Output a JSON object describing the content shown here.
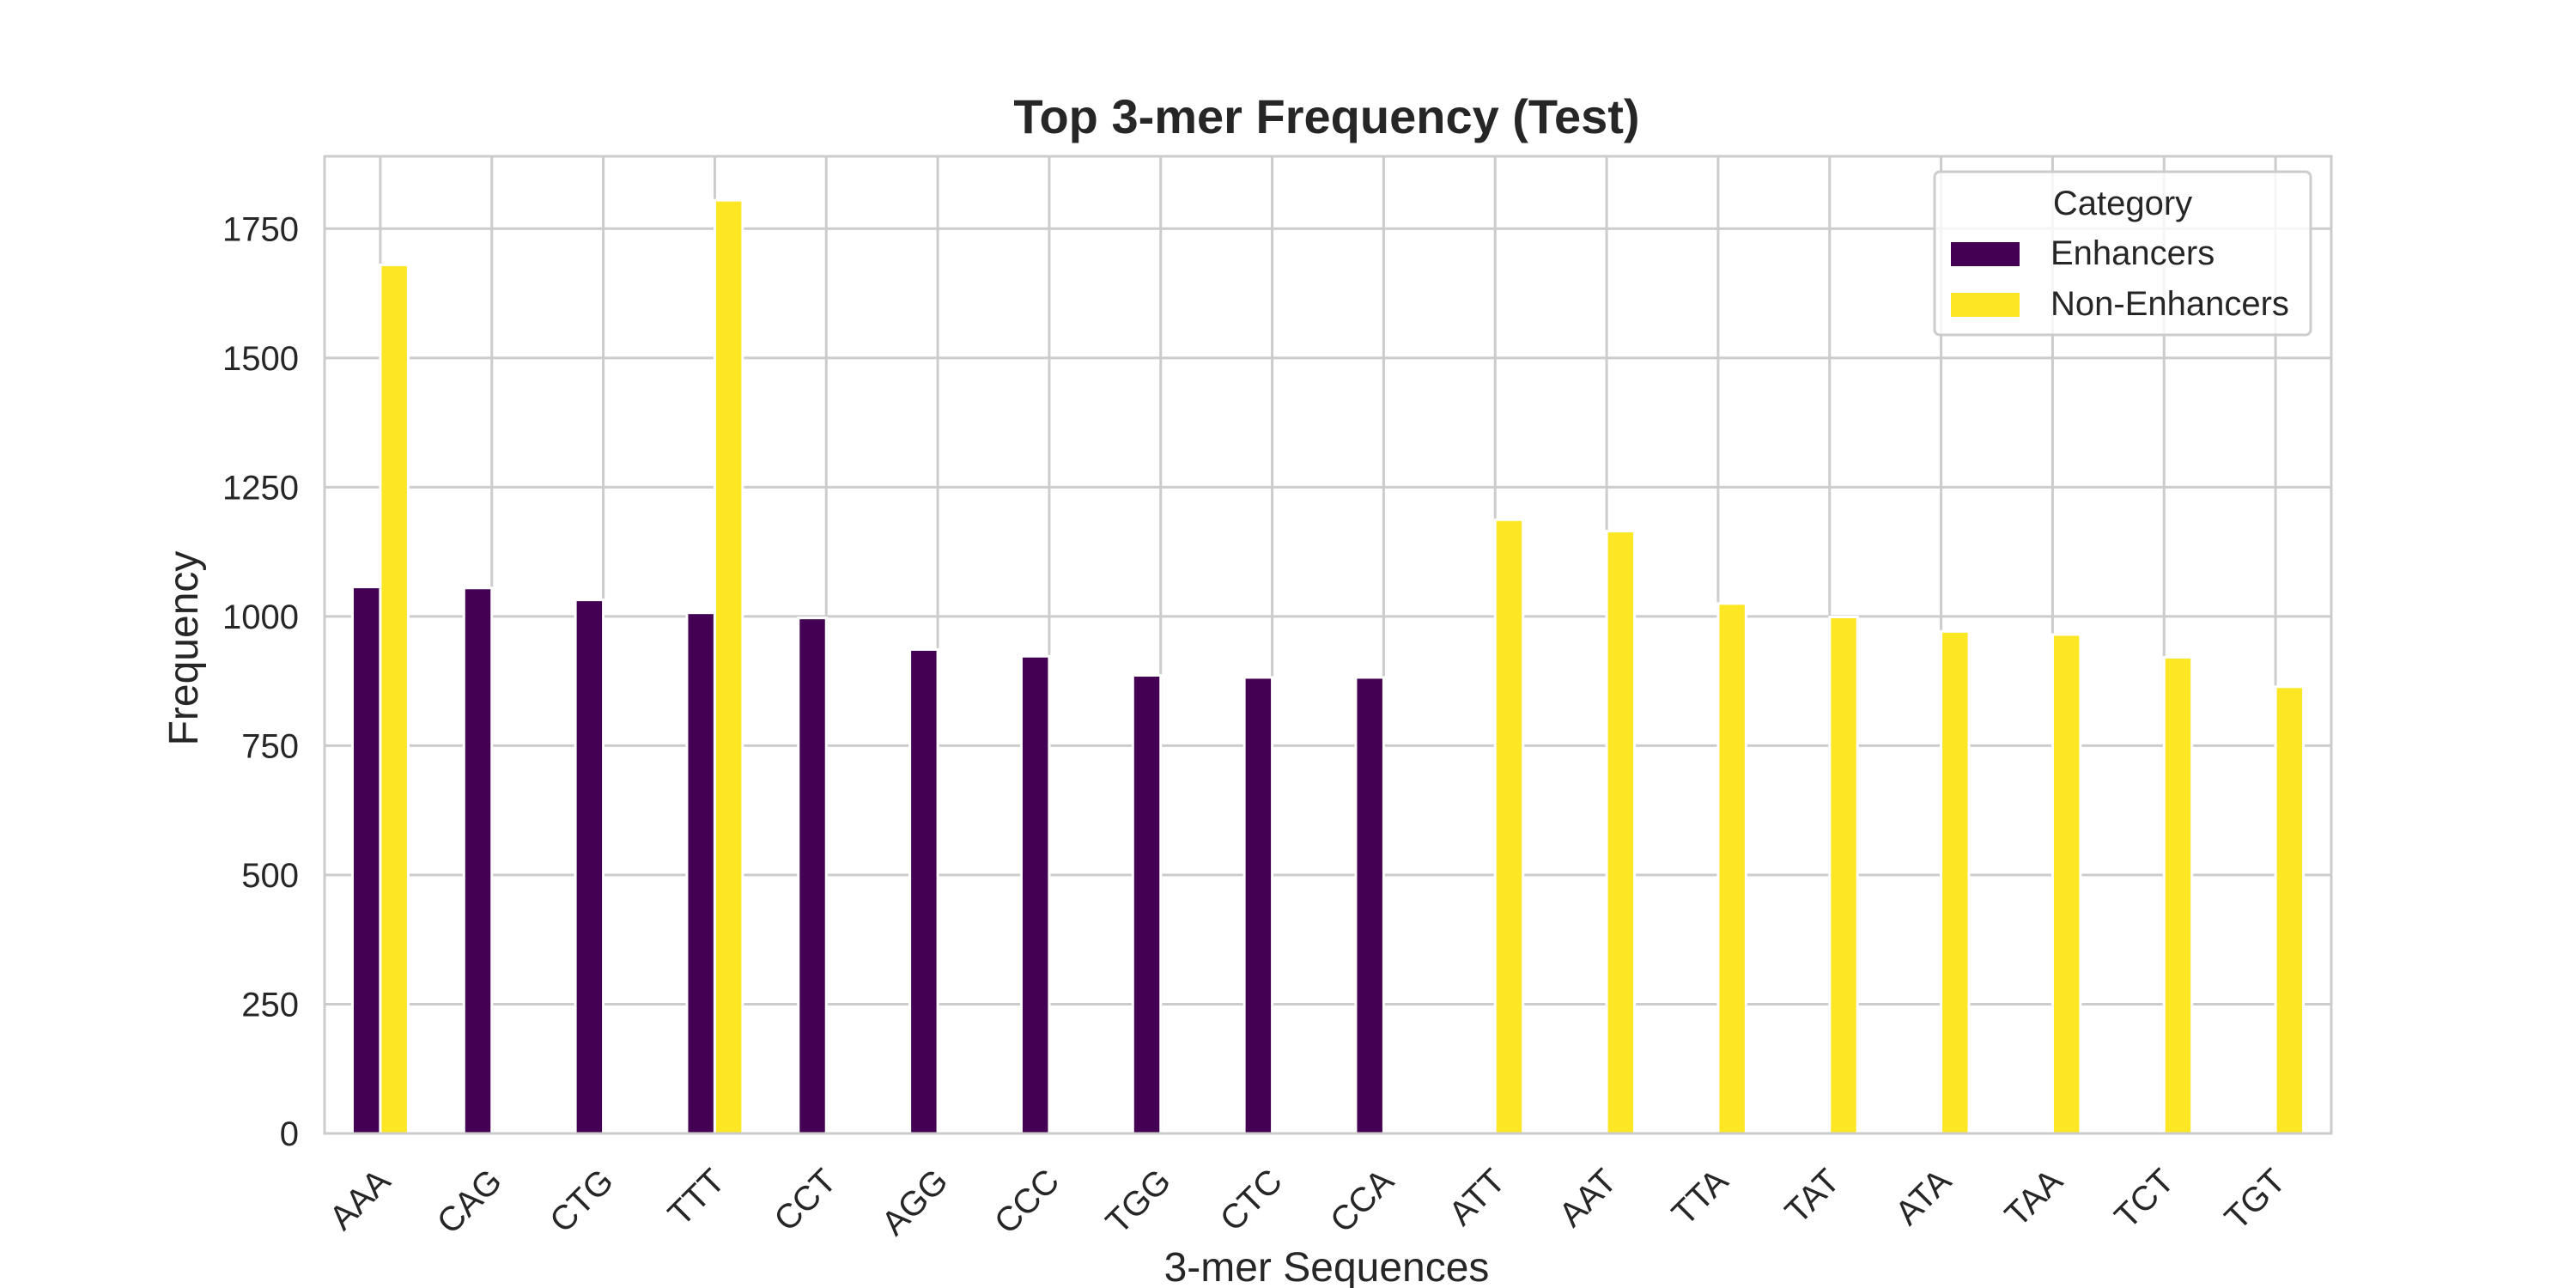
{
  "chart_data": {
    "type": "bar",
    "title": "Top 3-mer Frequency (Test)",
    "xlabel": "3-mer Sequences",
    "ylabel": "Frequency",
    "ylim": [
      0,
      1890
    ],
    "yticks": [
      0,
      250,
      500,
      750,
      1000,
      1250,
      1500,
      1750
    ],
    "ytick_labels": [
      "0",
      "250",
      "500",
      "750",
      "1000",
      "1250",
      "1500",
      "1750"
    ],
    "grid": true,
    "categories": [
      "AAA",
      "CAG",
      "CTG",
      "TTT",
      "CCT",
      "AGG",
      "CCC",
      "TGG",
      "CTC",
      "CCA",
      "ATT",
      "AAT",
      "TTA",
      "TAT",
      "ATA",
      "TAA",
      "TCT",
      "TGT"
    ],
    "series": [
      {
        "name": "Enhancers",
        "color": "#440154",
        "values": [
          1057,
          1055,
          1032,
          1007,
          997,
          936,
          923,
          886,
          882,
          882,
          null,
          null,
          null,
          null,
          null,
          null,
          null,
          null
        ]
      },
      {
        "name": "Non-Enhancers",
        "color": "#fde725",
        "values": [
          1680,
          null,
          null,
          1805,
          null,
          null,
          null,
          null,
          null,
          null,
          1187,
          1165,
          1025,
          999,
          971,
          965,
          921,
          864
        ]
      }
    ],
    "legend": {
      "title": "Category",
      "position": "top-right",
      "entries": [
        "Enhancers",
        "Non-Enhancers"
      ]
    }
  }
}
